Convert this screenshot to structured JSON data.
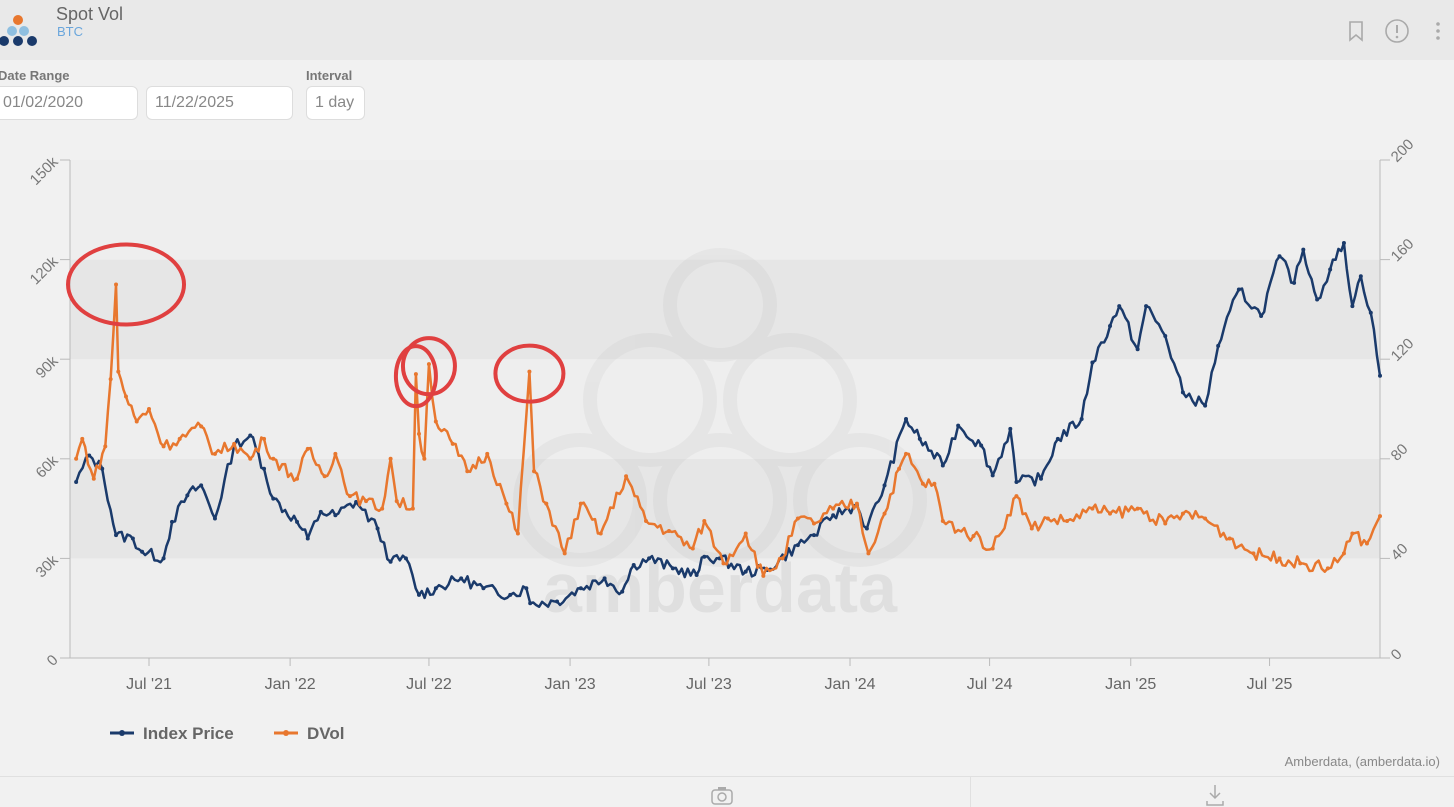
{
  "header": {
    "title": "Spot Vol",
    "subtitle": "BTC",
    "icons": [
      "bookmark-icon",
      "info-icon",
      "more-vertical-icon"
    ]
  },
  "controls": {
    "date_range_label": "Date Range",
    "start_date": "01/02/2020",
    "end_date": "11/22/2025",
    "interval_label": "Interval",
    "interval": "1 day"
  },
  "credit": "Amberdata, (amberdata.io)",
  "watermark": "amberdata",
  "footer": {
    "icons": [
      "camera-icon",
      "download-icon"
    ]
  },
  "chart_data": {
    "type": "line",
    "x_range": [
      "2021-03-20",
      "2025-11-22"
    ],
    "x_ticks": [
      "Jul '21",
      "Jan '22",
      "Jul '22",
      "Jan '23",
      "Jul '23",
      "Jan '24",
      "Jul '24",
      "Jan '25",
      "Jul '25"
    ],
    "x_tick_dates": [
      "2021-07-01",
      "2022-01-01",
      "2022-07-01",
      "2023-01-01",
      "2023-07-01",
      "2024-01-01",
      "2024-07-01",
      "2025-01-01",
      "2025-07-01"
    ],
    "y_left": {
      "range": [
        0,
        150000
      ],
      "ticks": [
        "0",
        "30k",
        "60k",
        "90k",
        "120k",
        "150k"
      ]
    },
    "y_right": {
      "range": [
        0,
        200
      ],
      "ticks": [
        "0",
        "40",
        "80",
        "120",
        "160",
        "200"
      ]
    },
    "grid": "alternating horizontal bands",
    "legend": "bottom-left",
    "series": [
      {
        "name": "Index Price",
        "axis": "left",
        "color": "#1a3a6b",
        "points": [
          [
            "2021-03-28",
            53000
          ],
          [
            "2021-04-14",
            61000
          ],
          [
            "2021-05-01",
            57000
          ],
          [
            "2021-05-19",
            37000
          ],
          [
            "2021-06-10",
            36000
          ],
          [
            "2021-06-22",
            32000
          ],
          [
            "2021-07-20",
            30000
          ],
          [
            "2021-07-31",
            41000
          ],
          [
            "2021-08-20",
            49000
          ],
          [
            "2021-09-07",
            52000
          ],
          [
            "2021-09-25",
            42000
          ],
          [
            "2021-10-20",
            64000
          ],
          [
            "2021-11-10",
            67000
          ],
          [
            "2021-11-28",
            57000
          ],
          [
            "2021-12-10",
            48000
          ],
          [
            "2022-01-10",
            41000
          ],
          [
            "2022-01-24",
            36000
          ],
          [
            "2022-02-10",
            44000
          ],
          [
            "2022-03-01",
            43000
          ],
          [
            "2022-03-28",
            47000
          ],
          [
            "2022-04-25",
            39000
          ],
          [
            "2022-05-12",
            29000
          ],
          [
            "2022-06-01",
            30000
          ],
          [
            "2022-06-18",
            19000
          ],
          [
            "2022-07-10",
            21000
          ],
          [
            "2022-08-12",
            24000
          ],
          [
            "2022-09-10",
            21000
          ],
          [
            "2022-10-15",
            19000
          ],
          [
            "2022-11-05",
            21000
          ],
          [
            "2022-11-10",
            16500
          ],
          [
            "2022-12-15",
            17000
          ],
          [
            "2023-01-15",
            21000
          ],
          [
            "2023-02-15",
            24000
          ],
          [
            "2023-03-10",
            20000
          ],
          [
            "2023-03-25",
            28000
          ],
          [
            "2023-04-14",
            30000
          ],
          [
            "2023-05-15",
            27000
          ],
          [
            "2023-06-15",
            25000
          ],
          [
            "2023-06-25",
            30500
          ],
          [
            "2023-07-15",
            30000
          ],
          [
            "2023-08-18",
            26000
          ],
          [
            "2023-09-15",
            26500
          ],
          [
            "2023-10-25",
            34000
          ],
          [
            "2023-11-15",
            37000
          ],
          [
            "2023-12-10",
            43000
          ],
          [
            "2024-01-10",
            46000
          ],
          [
            "2024-01-23",
            39000
          ],
          [
            "2024-02-15",
            52000
          ],
          [
            "2024-03-14",
            72000
          ],
          [
            "2024-04-01",
            66000
          ],
          [
            "2024-05-01",
            58000
          ],
          [
            "2024-05-21",
            70000
          ],
          [
            "2024-06-20",
            64000
          ],
          [
            "2024-07-05",
            55000
          ],
          [
            "2024-07-28",
            69000
          ],
          [
            "2024-08-05",
            53000
          ],
          [
            "2024-09-06",
            54000
          ],
          [
            "2024-09-28",
            66000
          ],
          [
            "2024-10-29",
            72000
          ],
          [
            "2024-11-12",
            89000
          ],
          [
            "2024-12-05",
            100000
          ],
          [
            "2024-12-17",
            106000
          ],
          [
            "2025-01-10",
            93000
          ],
          [
            "2025-01-21",
            106000
          ],
          [
            "2025-02-15",
            97000
          ],
          [
            "2025-03-10",
            80000
          ],
          [
            "2025-04-08",
            76000
          ],
          [
            "2025-04-25",
            94000
          ],
          [
            "2025-05-22",
            111000
          ],
          [
            "2025-06-20",
            103000
          ],
          [
            "2025-07-14",
            121000
          ],
          [
            "2025-08-02",
            113000
          ],
          [
            "2025-08-14",
            123000
          ],
          [
            "2025-09-01",
            108000
          ],
          [
            "2025-09-18",
            117000
          ],
          [
            "2025-10-06",
            125000
          ],
          [
            "2025-10-17",
            106000
          ],
          [
            "2025-10-28",
            115000
          ],
          [
            "2025-11-10",
            104000
          ],
          [
            "2025-11-22",
            85000
          ]
        ]
      },
      {
        "name": "DVol",
        "axis": "right",
        "color": "#e8772e",
        "points": [
          [
            "2021-03-28",
            80
          ],
          [
            "2021-04-05",
            88
          ],
          [
            "2021-04-20",
            72
          ],
          [
            "2021-05-05",
            85
          ],
          [
            "2021-05-12",
            112
          ],
          [
            "2021-05-19",
            150
          ],
          [
            "2021-05-22",
            115
          ],
          [
            "2021-06-01",
            105
          ],
          [
            "2021-06-15",
            95
          ],
          [
            "2021-07-01",
            100
          ],
          [
            "2021-07-20",
            85
          ],
          [
            "2021-08-10",
            88
          ],
          [
            "2021-09-07",
            93
          ],
          [
            "2021-09-25",
            82
          ],
          [
            "2021-10-20",
            86
          ],
          [
            "2021-11-10",
            80
          ],
          [
            "2021-11-28",
            88
          ],
          [
            "2021-12-10",
            80
          ],
          [
            "2022-01-10",
            72
          ],
          [
            "2022-01-24",
            84
          ],
          [
            "2022-02-15",
            73
          ],
          [
            "2022-03-01",
            82
          ],
          [
            "2022-03-20",
            65
          ],
          [
            "2022-04-10",
            63
          ],
          [
            "2022-05-01",
            60
          ],
          [
            "2022-05-12",
            80
          ],
          [
            "2022-05-20",
            63
          ],
          [
            "2022-06-10",
            60
          ],
          [
            "2022-06-14",
            114
          ],
          [
            "2022-06-18",
            90
          ],
          [
            "2022-06-25",
            80
          ],
          [
            "2022-07-01",
            118
          ],
          [
            "2022-07-10",
            95
          ],
          [
            "2022-08-01",
            86
          ],
          [
            "2022-08-20",
            75
          ],
          [
            "2022-09-15",
            82
          ],
          [
            "2022-10-10",
            62
          ],
          [
            "2022-10-25",
            50
          ],
          [
            "2022-11-09",
            115
          ],
          [
            "2022-11-15",
            75
          ],
          [
            "2022-12-01",
            62
          ],
          [
            "2022-12-25",
            42
          ],
          [
            "2023-01-15",
            62
          ],
          [
            "2023-02-10",
            50
          ],
          [
            "2023-03-15",
            73
          ],
          [
            "2023-04-10",
            55
          ],
          [
            "2023-05-10",
            51
          ],
          [
            "2023-06-10",
            44
          ],
          [
            "2023-06-25",
            55
          ],
          [
            "2023-07-20",
            38
          ],
          [
            "2023-08-18",
            50
          ],
          [
            "2023-09-10",
            33
          ],
          [
            "2023-10-05",
            40
          ],
          [
            "2023-10-25",
            56
          ],
          [
            "2023-11-15",
            54
          ],
          [
            "2023-12-10",
            60
          ],
          [
            "2024-01-10",
            62
          ],
          [
            "2024-01-25",
            42
          ],
          [
            "2024-02-15",
            58
          ],
          [
            "2024-03-05",
            76
          ],
          [
            "2024-03-14",
            82
          ],
          [
            "2024-04-05",
            70
          ],
          [
            "2024-04-20",
            70
          ],
          [
            "2024-05-01",
            55
          ],
          [
            "2024-06-10",
            49
          ],
          [
            "2024-07-05",
            44
          ],
          [
            "2024-08-05",
            65
          ],
          [
            "2024-08-25",
            52
          ],
          [
            "2024-09-15",
            56
          ],
          [
            "2024-10-10",
            55
          ],
          [
            "2024-11-12",
            60
          ],
          [
            "2024-12-05",
            58
          ],
          [
            "2025-01-10",
            60
          ],
          [
            "2025-02-15",
            54
          ],
          [
            "2025-03-10",
            58
          ],
          [
            "2025-04-08",
            56
          ],
          [
            "2025-05-10",
            48
          ],
          [
            "2025-06-10",
            42
          ],
          [
            "2025-07-14",
            40
          ],
          [
            "2025-08-10",
            38
          ],
          [
            "2025-09-15",
            36
          ],
          [
            "2025-10-06",
            42
          ],
          [
            "2025-10-17",
            50
          ],
          [
            "2025-11-05",
            46
          ],
          [
            "2025-11-22",
            57
          ]
        ]
      }
    ],
    "annotations": [
      "2021-05-19",
      "2022-06-14",
      "2022-07-01",
      "2022-11-09"
    ]
  }
}
